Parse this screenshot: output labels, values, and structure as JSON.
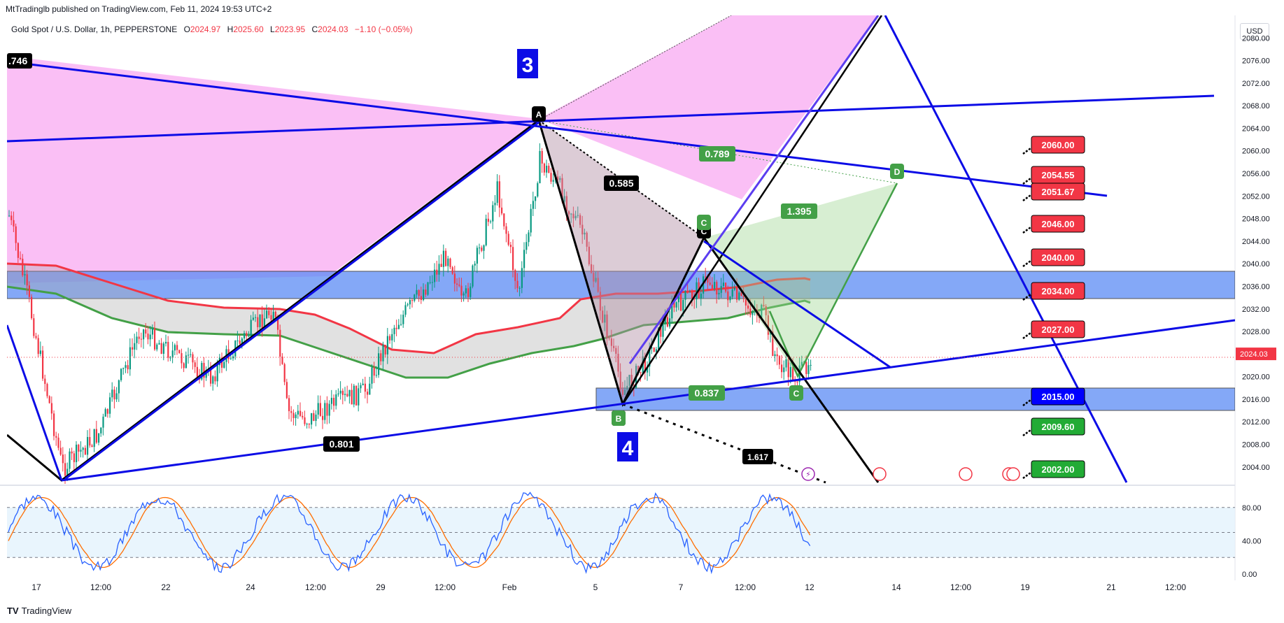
{
  "credit": "MtTradinglb published on TradingView.com, Feb 11, 2024 19:53 UTC+2",
  "symbol": {
    "name": "Gold Spot / U.S. Dollar, 1h, PEPPERSTONE",
    "o_label": "O",
    "o": "2024.97",
    "h_label": "H",
    "h": "2025.60",
    "l_label": "L",
    "l": "2023.95",
    "c_label": "C",
    "c": "2024.03",
    "change": "−1.10 (−0.05%)"
  },
  "currency": "USD",
  "footer": "TradingView",
  "chart_data": {
    "type": "candlestick",
    "price_axis": {
      "range": [
        2001,
        2084
      ],
      "ticks": [
        "2080.00",
        "2076.00",
        "2072.00",
        "2068.00",
        "2064.00",
        "2060.00",
        "2056.00",
        "2052.00",
        "2048.00",
        "2044.00",
        "2040.00",
        "2036.00",
        "2032.00",
        "2028.00",
        "2024.00",
        "2020.00",
        "2016.00",
        "2012.00",
        "2008.00",
        "2004.00"
      ],
      "last_price": "2024.03",
      "last_price_color": "#f23645"
    },
    "time_axis": {
      "labels": [
        "17",
        "12:00",
        "22",
        "24",
        "12:00",
        "29",
        "12:00",
        "Feb",
        "5",
        "7",
        "12:00",
        "12",
        "14",
        "12:00",
        "19",
        "21",
        "12:00"
      ]
    },
    "fib_labels": [
      "0.789",
      "0.585",
      "1.395",
      "0.837",
      "0.801",
      "1.617"
    ],
    "left_label": ".746",
    "wave_labels": [
      "3",
      "4"
    ],
    "pattern_points": [
      "A",
      "B",
      "C",
      "D",
      "C",
      "B",
      "C"
    ],
    "price_targets": [
      {
        "value": "2060.00",
        "color": "#f23645"
      },
      {
        "value": "2054.55",
        "color": "#f23645"
      },
      {
        "value": "2051.67",
        "color": "#f23645"
      },
      {
        "value": "2046.00",
        "color": "#f23645"
      },
      {
        "value": "2040.00",
        "color": "#f23645"
      },
      {
        "value": "2034.00",
        "color": "#f23645"
      },
      {
        "value": "2027.00",
        "color": "#f23645"
      },
      {
        "value": "2015.00",
        "color": "#0000ff"
      },
      {
        "value": "2009.60",
        "color": "#22ab35"
      },
      {
        "value": "2002.00",
        "color": "#22ab35"
      }
    ],
    "zones": [
      {
        "from": 2034.6,
        "to": 2039.4,
        "color": "#5b8cf5"
      },
      {
        "from": 2014.2,
        "to": 2018.3,
        "color": "#5b8cf5"
      }
    ],
    "oscillator": {
      "ticks": [
        "80.00",
        "40.00",
        "0.00"
      ],
      "range": [
        -5,
        100
      ],
      "band": [
        20,
        80
      ],
      "k_color": "#2962ff",
      "d_color": "#ff6d00"
    },
    "colors": {
      "up": "#089981",
      "down": "#f23645",
      "ma_fast": "#f23645",
      "ma_slow": "#43a047",
      "magenta_fill": "#f9b0f5",
      "blue_line": "#0c0ce6"
    }
  }
}
